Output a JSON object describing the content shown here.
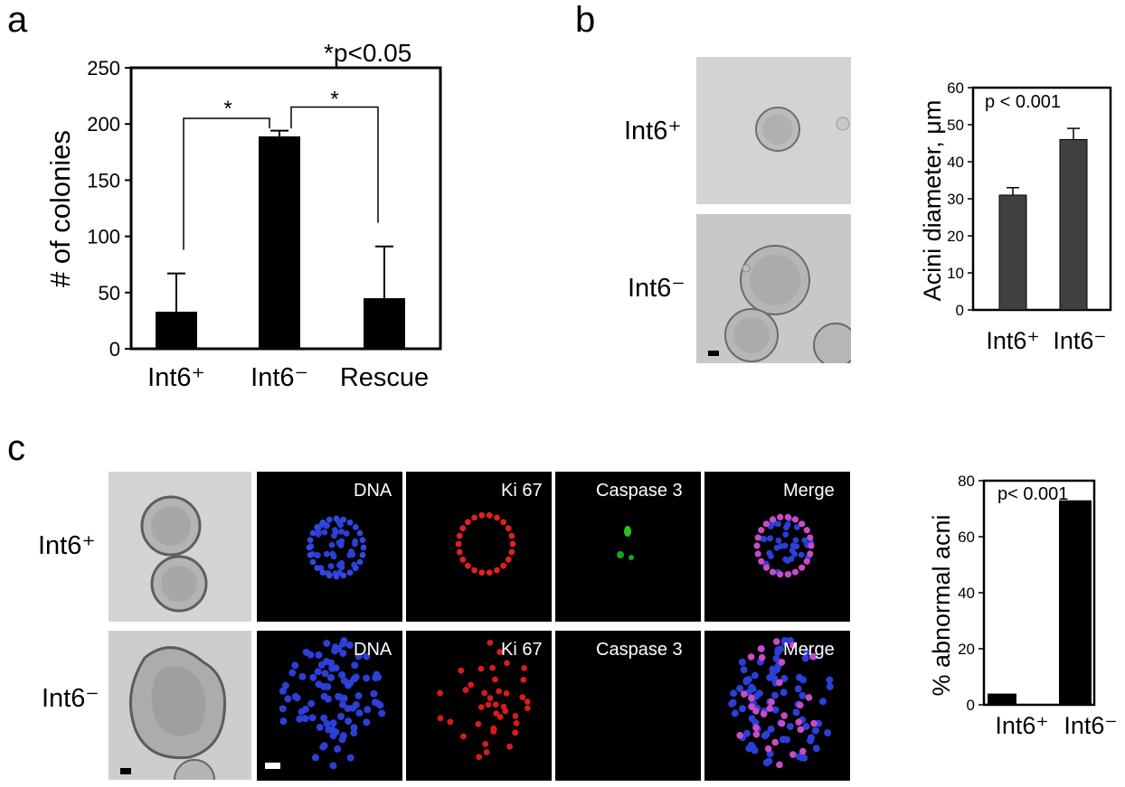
{
  "panels": {
    "a": {
      "letter": "a",
      "chart_data": {
        "type": "bar",
        "categories": [
          "Int6⁺",
          "Int6⁻",
          "Rescue"
        ],
        "values": [
          33,
          189,
          45
        ],
        "error_upper": [
          67,
          194,
          91
        ],
        "ylabel": "# of colonies",
        "ylim": [
          0,
          250
        ],
        "yticks": [
          0,
          50,
          100,
          150,
          200,
          250
        ],
        "annotations": {
          "pvalue": "*p<0.05",
          "star": "*"
        },
        "significance_pairs": [
          [
            "Int6⁺",
            "Int6⁻"
          ],
          [
            "Int6⁻",
            "Rescue"
          ]
        ],
        "bar_color": "#000000"
      }
    },
    "b": {
      "letter": "b",
      "row_labels": [
        "Int6⁺",
        "Int6⁻"
      ],
      "chart_data": {
        "type": "bar",
        "categories": [
          "Int6⁺",
          "Int6⁻"
        ],
        "values": [
          31,
          46
        ],
        "error_upper": [
          33,
          49
        ],
        "ylabel": "Acini diameter, μm",
        "ylim": [
          0,
          60
        ],
        "yticks": [
          0,
          10,
          20,
          30,
          40,
          50,
          60
        ],
        "annotations": {
          "pvalue": "p < 0.001"
        },
        "bar_color": "#404040"
      }
    },
    "c": {
      "letter": "c",
      "row_labels": [
        "Int6⁺",
        "Int6⁻"
      ],
      "channel_labels": [
        "DNA",
        "Ki 67",
        "Caspase 3",
        "Merge"
      ],
      "chart_data": {
        "type": "bar",
        "categories": [
          "Int6⁺",
          "Int6⁻"
        ],
        "values": [
          4,
          73
        ],
        "ylabel": "% abnormal acni",
        "ylim": [
          0,
          80
        ],
        "yticks": [
          0,
          20,
          40,
          60,
          80
        ],
        "annotations": {
          "pvalue": "p< 0.001"
        },
        "bar_color": "#000000"
      }
    }
  }
}
